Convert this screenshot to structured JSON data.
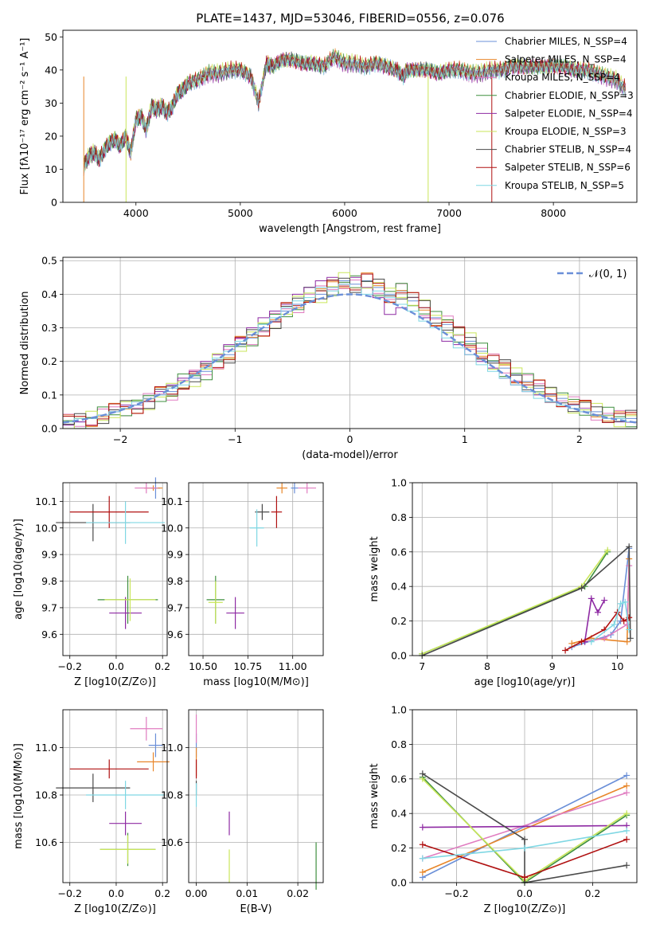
{
  "title": "PLATE=1437, MJD=53046, FIBERID=0556, z=0.076",
  "colors": {
    "Chabrier MILES": "#6a8fd8",
    "Salpeter MILES": "#e8862a",
    "Kroupa MILES": "#e07cc0",
    "Chabrier ELODIE": "#3f8f3f",
    "Salpeter ELODIE": "#8e2aa3",
    "Kroupa ELODIE": "#c9e65a",
    "Chabrier STELIB": "#4a4a4a",
    "Salpeter STELIB": "#b01010",
    "Kroupa STELIB": "#7fd7e3"
  },
  "chart_data": [
    {
      "id": "spectrum",
      "type": "line",
      "title": "PLATE=1437, MJD=53046, FIBERID=0556, z=0.076",
      "xlabel": "wavelength [Angstrom, rest frame]",
      "ylabel": "Flux [fλ10⁻¹⁷ erg cm⁻² s⁻¹ A⁻¹]",
      "xlim": [
        3300,
        8800
      ],
      "ylim": [
        0,
        52
      ],
      "xticks": [
        "4000",
        "5000",
        "6000",
        "7000",
        "8000"
      ],
      "yticks": [
        "0",
        "10",
        "20",
        "30",
        "40",
        "50"
      ],
      "legend_position": "top-right",
      "legend": [
        "Chabrier MILES, N_SSP=4",
        "Salpeter MILES, N_SSP=4",
        "Kroupa MILES, N_SSP=4",
        "Chabrier ELODIE, N_SSP=3",
        "Salpeter ELODIE, N_SSP=4",
        "Kroupa ELODIE, N_SSP=3",
        "Chabrier STELIB, N_SSP=4",
        "Salpeter STELIB, N_SSP=6",
        "Kroupa STELIB, N_SSP=5"
      ],
      "x": [
        3500,
        3550,
        3600,
        3650,
        3700,
        3750,
        3800,
        3850,
        3900,
        3950,
        4000,
        4050,
        4100,
        4150,
        4200,
        4250,
        4300,
        4350,
        4400,
        4450,
        4500,
        4600,
        4700,
        4800,
        4900,
        5000,
        5100,
        5175,
        5250,
        5300,
        5400,
        5500,
        5600,
        5700,
        5800,
        5900,
        6000,
        6100,
        6200,
        6300,
        6400,
        6500,
        6563,
        6600,
        6700,
        6800,
        6900,
        7000,
        7100,
        7200,
        7300,
        7400,
        7500,
        7600,
        7700,
        7800,
        7900,
        8000,
        8100,
        8200,
        8300,
        8400,
        8500,
        8600,
        8700
      ],
      "y": [
        11,
        14,
        15,
        13,
        16,
        18,
        19,
        17,
        20,
        15,
        25,
        26,
        22,
        29,
        28,
        29,
        27,
        29,
        33,
        34,
        36,
        37,
        39,
        39,
        40,
        40,
        38,
        30,
        42,
        41,
        43,
        43,
        42,
        42,
        41,
        44,
        42,
        42,
        41,
        42,
        41,
        40,
        38,
        40,
        40,
        40,
        39,
        40,
        40,
        39,
        39,
        40,
        40,
        41,
        41,
        41,
        41,
        41,
        41,
        40,
        40,
        39,
        38,
        37,
        34
      ]
    },
    {
      "id": "residuals",
      "type": "step",
      "xlabel": "(data-model)/error",
      "ylabel": "Normed distribution",
      "xlim": [
        -2.5,
        2.5
      ],
      "ylim": [
        0,
        0.51
      ],
      "xticks": [
        "−2",
        "−1",
        "0",
        "1",
        "2"
      ],
      "yticks": [
        "0.0",
        "0.1",
        "0.2",
        "0.3",
        "0.4",
        "0.5"
      ],
      "legend_position": "top-right",
      "legend": [
        "𝒩(0, 1)"
      ],
      "bin_width": 0.1,
      "bin_start": -2.5,
      "series": [
        {
          "name": "Chabrier MILES",
          "values": [
            0.02,
            0.02,
            0.03,
            0.04,
            0.05,
            0.06,
            0.07,
            0.08,
            0.1,
            0.11,
            0.14,
            0.15,
            0.17,
            0.2,
            0.22,
            0.25,
            0.27,
            0.3,
            0.32,
            0.35,
            0.37,
            0.4,
            0.4,
            0.42,
            0.44,
            0.43,
            0.44,
            0.42,
            0.4,
            0.41,
            0.38,
            0.36,
            0.33,
            0.31,
            0.28,
            0.26,
            0.23,
            0.2,
            0.18,
            0.16,
            0.14,
            0.12,
            0.1,
            0.09,
            0.07,
            0.06,
            0.05,
            0.04,
            0.03,
            0.03
          ]
        },
        {
          "name": "Kroupa STELIB",
          "values": [
            0.02,
            0.03,
            0.03,
            0.04,
            0.05,
            0.06,
            0.08,
            0.09,
            0.1,
            0.12,
            0.13,
            0.16,
            0.18,
            0.21,
            0.23,
            0.26,
            0.28,
            0.31,
            0.33,
            0.36,
            0.38,
            0.39,
            0.42,
            0.41,
            0.43,
            0.42,
            0.4,
            0.41,
            0.39,
            0.37,
            0.35,
            0.32,
            0.3,
            0.27,
            0.24,
            0.22,
            0.19,
            0.17,
            0.15,
            0.13,
            0.11,
            0.09,
            0.08,
            0.07,
            0.06,
            0.05,
            0.04,
            0.03,
            0.03,
            0.02
          ]
        },
        {
          "name": "Salpeter ELODIE",
          "values": [
            0.01,
            0.02,
            0.03,
            0.04,
            0.05,
            0.07,
            0.08,
            0.09,
            0.11,
            0.13,
            0.15,
            0.17,
            0.2,
            0.22,
            0.25,
            0.27,
            0.3,
            0.33,
            0.35,
            0.37,
            0.4,
            0.42,
            0.44,
            0.45,
            0.43,
            0.45,
            0.42,
            0.39,
            0.34,
            0.36,
            0.35,
            0.33,
            0.3,
            0.26,
            0.25,
            0.22,
            0.2,
            0.18,
            0.15,
            0.13,
            0.11,
            0.1,
            0.08,
            0.07,
            0.06,
            0.05,
            0.04,
            0.03,
            0.02,
            0.02
          ]
        }
      ],
      "normal_curve": {
        "mean": 0,
        "sigma": 1,
        "peak_value": 0.4
      }
    },
    {
      "id": "age_vs_Z",
      "type": "errorbar",
      "xlabel": "Z [log10(Z/Z⊙)]",
      "ylabel": "age  [log10(age/yr)]",
      "xlim": [
        -0.23,
        0.22
      ],
      "ylim": [
        9.52,
        10.17
      ],
      "xticks": [
        "−0.2",
        "0.0",
        "0.2"
      ],
      "yticks": [
        "9.6",
        "9.7",
        "9.8",
        "9.9",
        "10.0",
        "10.1"
      ],
      "points": [
        {
          "series": "Chabrier MILES",
          "x": 0.17,
          "y": 10.15,
          "xerr": 0.02,
          "yerr": 0.04
        },
        {
          "series": "Salpeter MILES",
          "x": 0.16,
          "y": 10.15,
          "xerr": 0.04,
          "yerr": 0.01
        },
        {
          "series": "Kroupa MILES",
          "x": 0.13,
          "y": 10.15,
          "xerr": 0.05,
          "yerr": 0.02
        },
        {
          "series": "Chabrier ELODIE",
          "x": 0.05,
          "y": 9.73,
          "xerr": 0.13,
          "yerr": 0.09
        },
        {
          "series": "Salpeter ELODIE",
          "x": 0.04,
          "y": 9.68,
          "xerr": 0.07,
          "yerr": 0.06
        },
        {
          "series": "Kroupa ELODIE",
          "x": 0.06,
          "y": 9.73,
          "xerr": 0.11,
          "yerr": 0.08
        },
        {
          "series": "Chabrier STELIB",
          "x": -0.1,
          "y": 10.02,
          "xerr": 0.16,
          "yerr": 0.07
        },
        {
          "series": "Salpeter STELIB",
          "x": -0.03,
          "y": 10.06,
          "xerr": 0.17,
          "yerr": 0.06
        },
        {
          "series": "Kroupa STELIB",
          "x": 0.04,
          "y": 10.02,
          "xerr": 0.17,
          "yerr": 0.08
        }
      ]
    },
    {
      "id": "age_vs_mass",
      "type": "errorbar",
      "xlabel": "mass [log10(M/M⊙)]",
      "ylabel": "",
      "xlim": [
        10.42,
        11.17
      ],
      "ylim": [
        9.52,
        10.17
      ],
      "xticks": [
        "10.50",
        "10.75",
        "11.00"
      ],
      "yticks": [
        "9.6",
        "9.7",
        "9.8",
        "9.9",
        "10.0",
        "10.1"
      ],
      "points": [
        {
          "series": "Chabrier MILES",
          "x": 11.01,
          "y": 10.15,
          "xerr": 0.02,
          "yerr": 0.02
        },
        {
          "series": "Salpeter MILES",
          "x": 10.94,
          "y": 10.15,
          "xerr": 0.03,
          "yerr": 0.02
        },
        {
          "series": "Kroupa MILES",
          "x": 11.08,
          "y": 10.15,
          "xerr": 0.05,
          "yerr": 0.02
        },
        {
          "series": "Chabrier ELODIE",
          "x": 10.57,
          "y": 9.73,
          "xerr": 0.05,
          "yerr": 0.09
        },
        {
          "series": "Salpeter ELODIE",
          "x": 10.68,
          "y": 9.68,
          "xerr": 0.05,
          "yerr": 0.06
        },
        {
          "series": "Kroupa ELODIE",
          "x": 10.57,
          "y": 9.72,
          "xerr": 0.04,
          "yerr": 0.08
        },
        {
          "series": "Chabrier STELIB",
          "x": 10.83,
          "y": 10.06,
          "xerr": 0.04,
          "yerr": 0.03
        },
        {
          "series": "Salpeter STELIB",
          "x": 10.91,
          "y": 10.06,
          "xerr": 0.03,
          "yerr": 0.06
        },
        {
          "series": "Kroupa STELIB",
          "x": 10.8,
          "y": 10.0,
          "xerr": 0.04,
          "yerr": 0.07
        }
      ]
    },
    {
      "id": "weight_vs_age",
      "type": "line",
      "xlabel": "age  [log10(age/yr)]",
      "ylabel": "mass weight",
      "xlim": [
        6.85,
        10.3
      ],
      "ylim": [
        0,
        1.0
      ],
      "xticks": [
        "7",
        "8",
        "9",
        "10"
      ],
      "yticks": [
        "0.0",
        "0.2",
        "0.4",
        "0.6",
        "0.8",
        "1.0"
      ],
      "series": [
        {
          "name": "Chabrier MILES",
          "x": [
            9.3,
            9.9,
            10.05,
            10.18
          ],
          "y": [
            0.05,
            0.12,
            0.2,
            0.62
          ]
        },
        {
          "name": "Salpeter MILES",
          "x": [
            9.3,
            9.6,
            10.15,
            10.18
          ],
          "y": [
            0.07,
            0.1,
            0.08,
            0.56
          ]
        },
        {
          "name": "Kroupa MILES",
          "x": [
            9.5,
            9.8,
            10.15,
            10.18
          ],
          "y": [
            0.08,
            0.1,
            0.18,
            0.52
          ]
        },
        {
          "name": "Chabrier ELODIE",
          "x": [
            7.0,
            9.5,
            9.85
          ],
          "y": [
            0.01,
            0.4,
            0.6
          ]
        },
        {
          "name": "Salpeter ELODIE",
          "x": [
            9.5,
            9.6,
            9.7,
            9.8
          ],
          "y": [
            0.08,
            0.33,
            0.25,
            0.32
          ]
        },
        {
          "name": "Kroupa ELODIE",
          "x": [
            7.0,
            9.45,
            9.85
          ],
          "y": [
            0.01,
            0.4,
            0.61
          ]
        },
        {
          "name": "Chabrier STELIB",
          "x": [
            7.0,
            9.45,
            10.18,
            10.2
          ],
          "y": [
            0.0,
            0.39,
            0.63,
            0.1
          ]
        },
        {
          "name": "Salpeter STELIB",
          "x": [
            9.2,
            9.45,
            9.8,
            10.0,
            10.1,
            10.18
          ],
          "y": [
            0.03,
            0.08,
            0.15,
            0.25,
            0.2,
            0.22
          ]
        },
        {
          "name": "Kroupa STELIB",
          "x": [
            9.6,
            9.95,
            10.05,
            10.12,
            10.18
          ],
          "y": [
            0.08,
            0.18,
            0.3,
            0.31,
            0.15
          ]
        }
      ]
    },
    {
      "id": "mass_vs_Z",
      "type": "errorbar",
      "xlabel": "Z [log10(Z/Z⊙)]",
      "ylabel": "mass [log10(M/M⊙)]",
      "xlim": [
        -0.23,
        0.22
      ],
      "ylim": [
        10.43,
        11.16
      ],
      "xticks": [
        "−0.2",
        "0.0",
        "0.2"
      ],
      "yticks": [
        "10.6",
        "10.8",
        "11.0"
      ],
      "points": [
        {
          "series": "Chabrier MILES",
          "x": 0.17,
          "y": 11.01,
          "xerr": 0.03,
          "yerr": 0.05
        },
        {
          "series": "Salpeter MILES",
          "x": 0.16,
          "y": 10.94,
          "xerr": 0.07,
          "yerr": 0.04
        },
        {
          "series": "Kroupa MILES",
          "x": 0.13,
          "y": 11.08,
          "xerr": 0.07,
          "yerr": 0.05
        },
        {
          "series": "Chabrier ELODIE",
          "x": 0.05,
          "y": 10.57,
          "xerr": 0.12,
          "yerr": 0.07
        },
        {
          "series": "Salpeter ELODIE",
          "x": 0.04,
          "y": 10.68,
          "xerr": 0.07,
          "yerr": 0.05
        },
        {
          "series": "Kroupa ELODIE",
          "x": 0.05,
          "y": 10.57,
          "xerr": 0.12,
          "yerr": 0.06
        },
        {
          "series": "Chabrier STELIB",
          "x": -0.1,
          "y": 10.83,
          "xerr": 0.16,
          "yerr": 0.06
        },
        {
          "series": "Salpeter STELIB",
          "x": -0.03,
          "y": 10.91,
          "xerr": 0.17,
          "yerr": 0.04
        },
        {
          "series": "Kroupa STELIB",
          "x": 0.04,
          "y": 10.8,
          "xerr": 0.17,
          "yerr": 0.06
        }
      ]
    },
    {
      "id": "mass_vs_ebv",
      "type": "errorbar",
      "xlabel": "E(B-V)",
      "ylabel": "",
      "xlim": [
        -0.0015,
        0.025
      ],
      "ylim": [
        10.43,
        11.16
      ],
      "xticks": [
        "0.00",
        "0.01",
        "0.02"
      ],
      "yticks": [
        "10.6",
        "10.8",
        "11.0"
      ],
      "points": [
        {
          "series": "Chabrier MILES",
          "x": 0.0,
          "y": 11.01,
          "xerr": 0,
          "yerr": 0.05
        },
        {
          "series": "Salpeter MILES",
          "x": 0.0,
          "y": 10.94,
          "xerr": 0,
          "yerr": 0.06
        },
        {
          "series": "Kroupa MILES",
          "x": 0.0,
          "y": 11.08,
          "xerr": 0,
          "yerr": 0.06
        },
        {
          "series": "Chabrier ELODIE",
          "x": 0.0236,
          "y": 10.5,
          "xerr": 0,
          "yerr": 0.1
        },
        {
          "series": "Salpeter ELODIE",
          "x": 0.0065,
          "y": 10.68,
          "xerr": 0,
          "yerr": 0.05
        },
        {
          "series": "Kroupa ELODIE",
          "x": 0.0065,
          "y": 10.5,
          "xerr": 0,
          "yerr": 0.07
        },
        {
          "series": "Chabrier STELIB",
          "x": 0.0,
          "y": 10.83,
          "xerr": 0,
          "yerr": 0.03
        },
        {
          "series": "Salpeter STELIB",
          "x": 0.0,
          "y": 10.91,
          "xerr": 0,
          "yerr": 0.04
        },
        {
          "series": "Kroupa STELIB",
          "x": 0.0,
          "y": 10.8,
          "xerr": 0,
          "yerr": 0.05
        }
      ]
    },
    {
      "id": "weight_vs_Z",
      "type": "line",
      "xlabel": "Z [log10(Z/Z⊙)]",
      "ylabel": "mass weight",
      "xlim": [
        -0.33,
        0.33
      ],
      "ylim": [
        0,
        1.0
      ],
      "xticks": [
        "−0.2",
        "0.0",
        "0.2"
      ],
      "yticks": [
        "0.0",
        "0.2",
        "0.4",
        "0.6",
        "0.8",
        "1.0"
      ],
      "series": [
        {
          "name": "Chabrier MILES",
          "x": [
            -0.3,
            0.3
          ],
          "y": [
            0.03,
            0.62
          ]
        },
        {
          "name": "Salpeter MILES",
          "x": [
            -0.3,
            0.3
          ],
          "y": [
            0.06,
            0.56
          ]
        },
        {
          "name": "Kroupa MILES",
          "x": [
            -0.3,
            0.3
          ],
          "y": [
            0.14,
            0.52
          ]
        },
        {
          "name": "Chabrier ELODIE",
          "x": [
            -0.3,
            0.0,
            0.3
          ],
          "y": [
            0.61,
            0.0,
            0.39
          ]
        },
        {
          "name": "Salpeter ELODIE",
          "x": [
            -0.3,
            0.3
          ],
          "y": [
            0.32,
            0.33
          ]
        },
        {
          "name": "Kroupa ELODIE",
          "x": [
            -0.3,
            0.0,
            0.3
          ],
          "y": [
            0.6,
            0.01,
            0.4
          ]
        },
        {
          "name": "Chabrier STELIB",
          "x": [
            -0.3,
            0.0,
            0.0,
            0.3
          ],
          "y": [
            0.63,
            0.25,
            0.0,
            0.1
          ]
        },
        {
          "name": "Salpeter STELIB",
          "x": [
            -0.3,
            0.0,
            0.3
          ],
          "y": [
            0.22,
            0.03,
            0.25
          ]
        },
        {
          "name": "Kroupa STELIB",
          "x": [
            -0.3,
            0.0,
            0.3
          ],
          "y": [
            0.14,
            0.2,
            0.3
          ]
        }
      ]
    }
  ]
}
